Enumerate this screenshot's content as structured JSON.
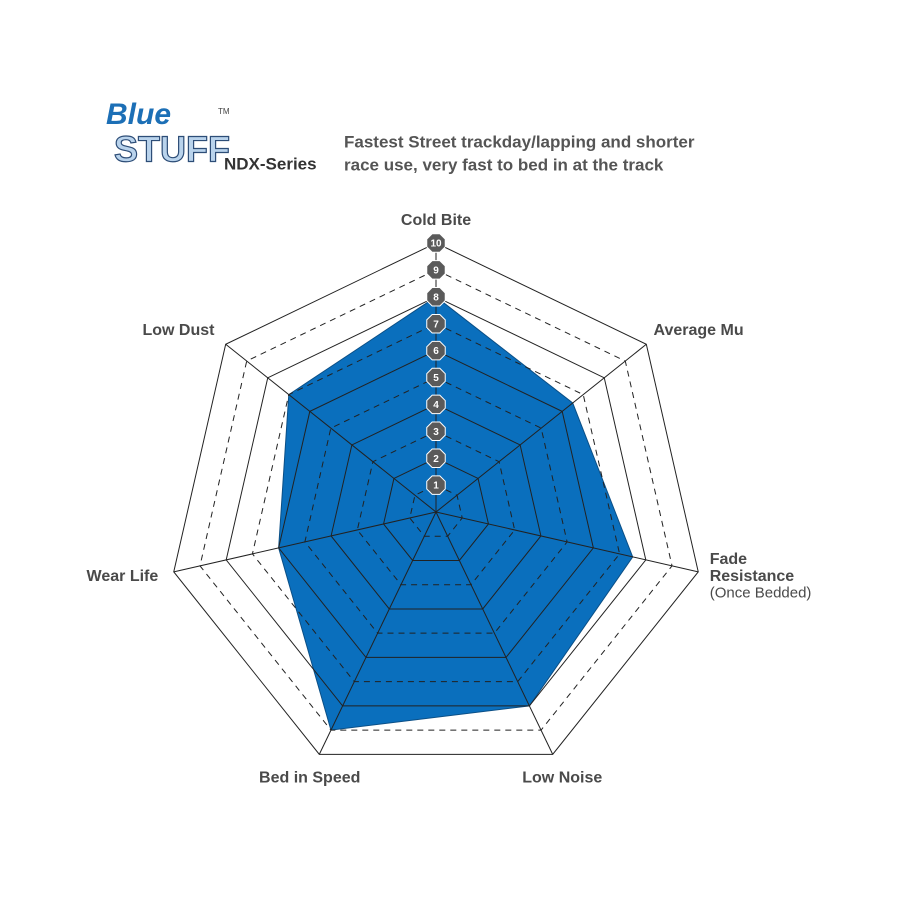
{
  "chart_data": {
    "type": "radar",
    "logo": {
      "line1": "Blue",
      "line2": "STUFF",
      "mark": "TM"
    },
    "series_name": "NDX-Series",
    "description": [
      "Fastest Street trackday/lapping and shorter",
      "race use, very fast to bed in at the track"
    ],
    "categories": [
      [
        "Cold Bite"
      ],
      [
        "Average Mu"
      ],
      [
        "Fade",
        "Resistance",
        "(Once Bedded)"
      ],
      [
        "Low Noise"
      ],
      [
        "Bed in Speed"
      ],
      [
        "Wear Life"
      ],
      [
        "Low Dust"
      ]
    ],
    "values": [
      8,
      6.5,
      7.5,
      8,
      9,
      6,
      7
    ],
    "color": "#0a6fbd",
    "rlim": [
      0,
      10
    ],
    "rticks": [
      1,
      2,
      3,
      4,
      5,
      6,
      7,
      8,
      9,
      10
    ]
  }
}
